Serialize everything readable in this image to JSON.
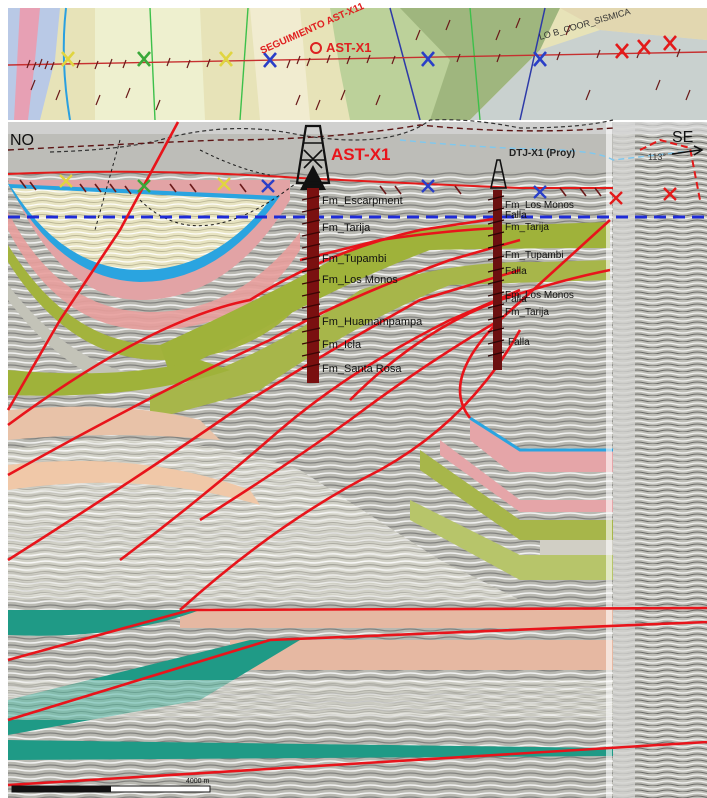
{
  "map": {
    "labels": {
      "seguimiento": "SEGUIMIENTO AST-X11",
      "ast": "AST-X1",
      "corridor": "LO B_COOR_SISMICA"
    }
  },
  "section": {
    "corner_left": "NO",
    "corner_right": "SE",
    "well_main": "AST-X1",
    "well_secondary": "DTJ-X1 (Proy)",
    "azimuth": "113°",
    "scale_label": "4000 m",
    "formations_main": [
      "Fm_Escarpment",
      "Fm_Tarija",
      "Fm_Tupambi",
      "Fm_Los Monos",
      "Fm_Huamampampa",
      "Fm_Icla",
      "Fm_Santa Rosa"
    ],
    "formations_secondary": [
      "Fm_Los Monos",
      "Falla",
      "Fm_Tarija",
      "Fm_Tupambi",
      "Falla",
      "Fm_Los Monos",
      "Fm_Tarija",
      "Falla",
      "Falla"
    ]
  },
  "colors": {
    "fault": "#e8141b",
    "datum": "#1e2bd6",
    "well": "#7a1010",
    "green_band": "#9fb23a",
    "teal_band": "#1f9a86",
    "pink_band": "#e5a5a8",
    "blue_band": "#2aa4e0"
  }
}
